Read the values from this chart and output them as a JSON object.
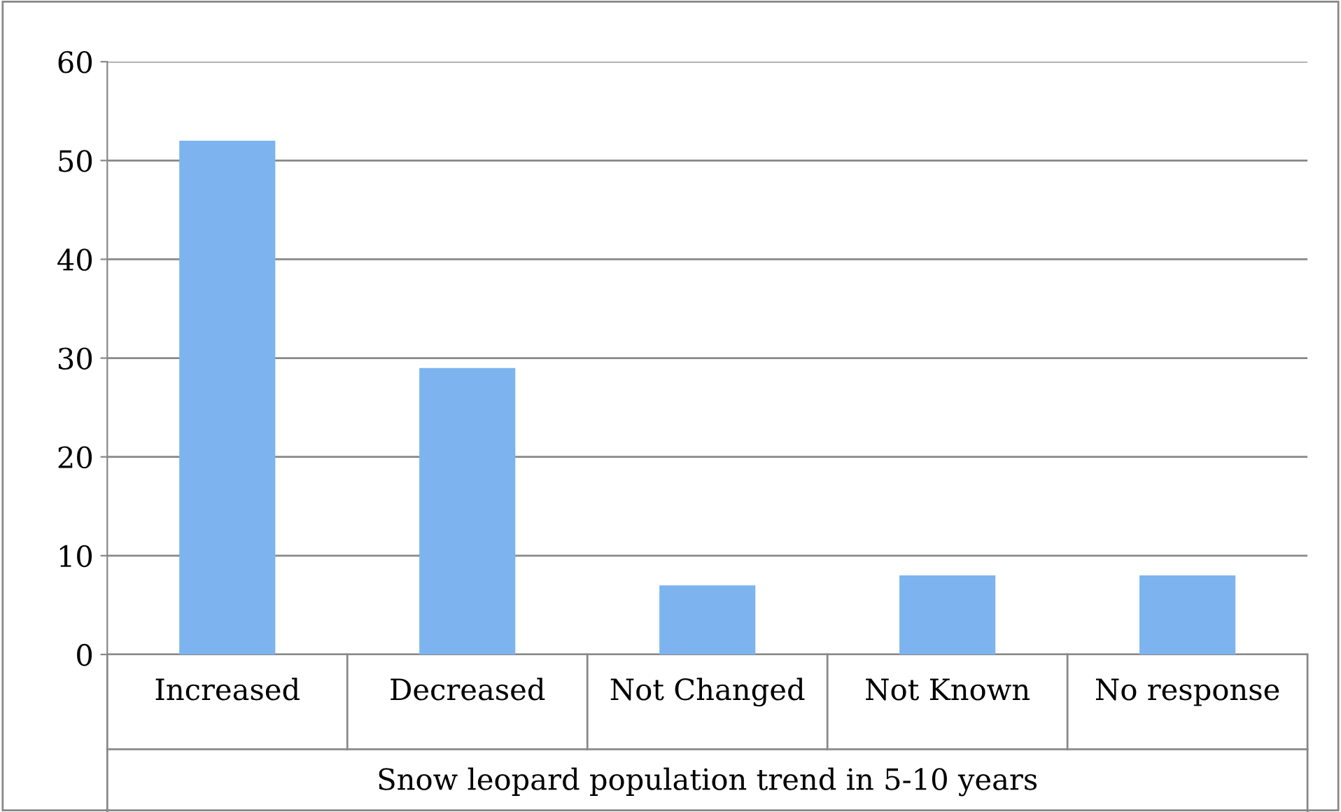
{
  "chart_data": {
    "type": "bar",
    "xlabel": "Snow leopard population trend in 5-10 years",
    "categories": [
      "Increased",
      "Decreased",
      "Not Changed",
      "Not Known",
      "No response"
    ],
    "values": [
      52,
      29,
      7,
      8,
      8
    ],
    "color": "#7db4ef",
    "ylim": [
      0,
      60
    ],
    "yticks": [
      0,
      10,
      20,
      30,
      40,
      50,
      60
    ],
    "grid": "y",
    "legend": false
  }
}
